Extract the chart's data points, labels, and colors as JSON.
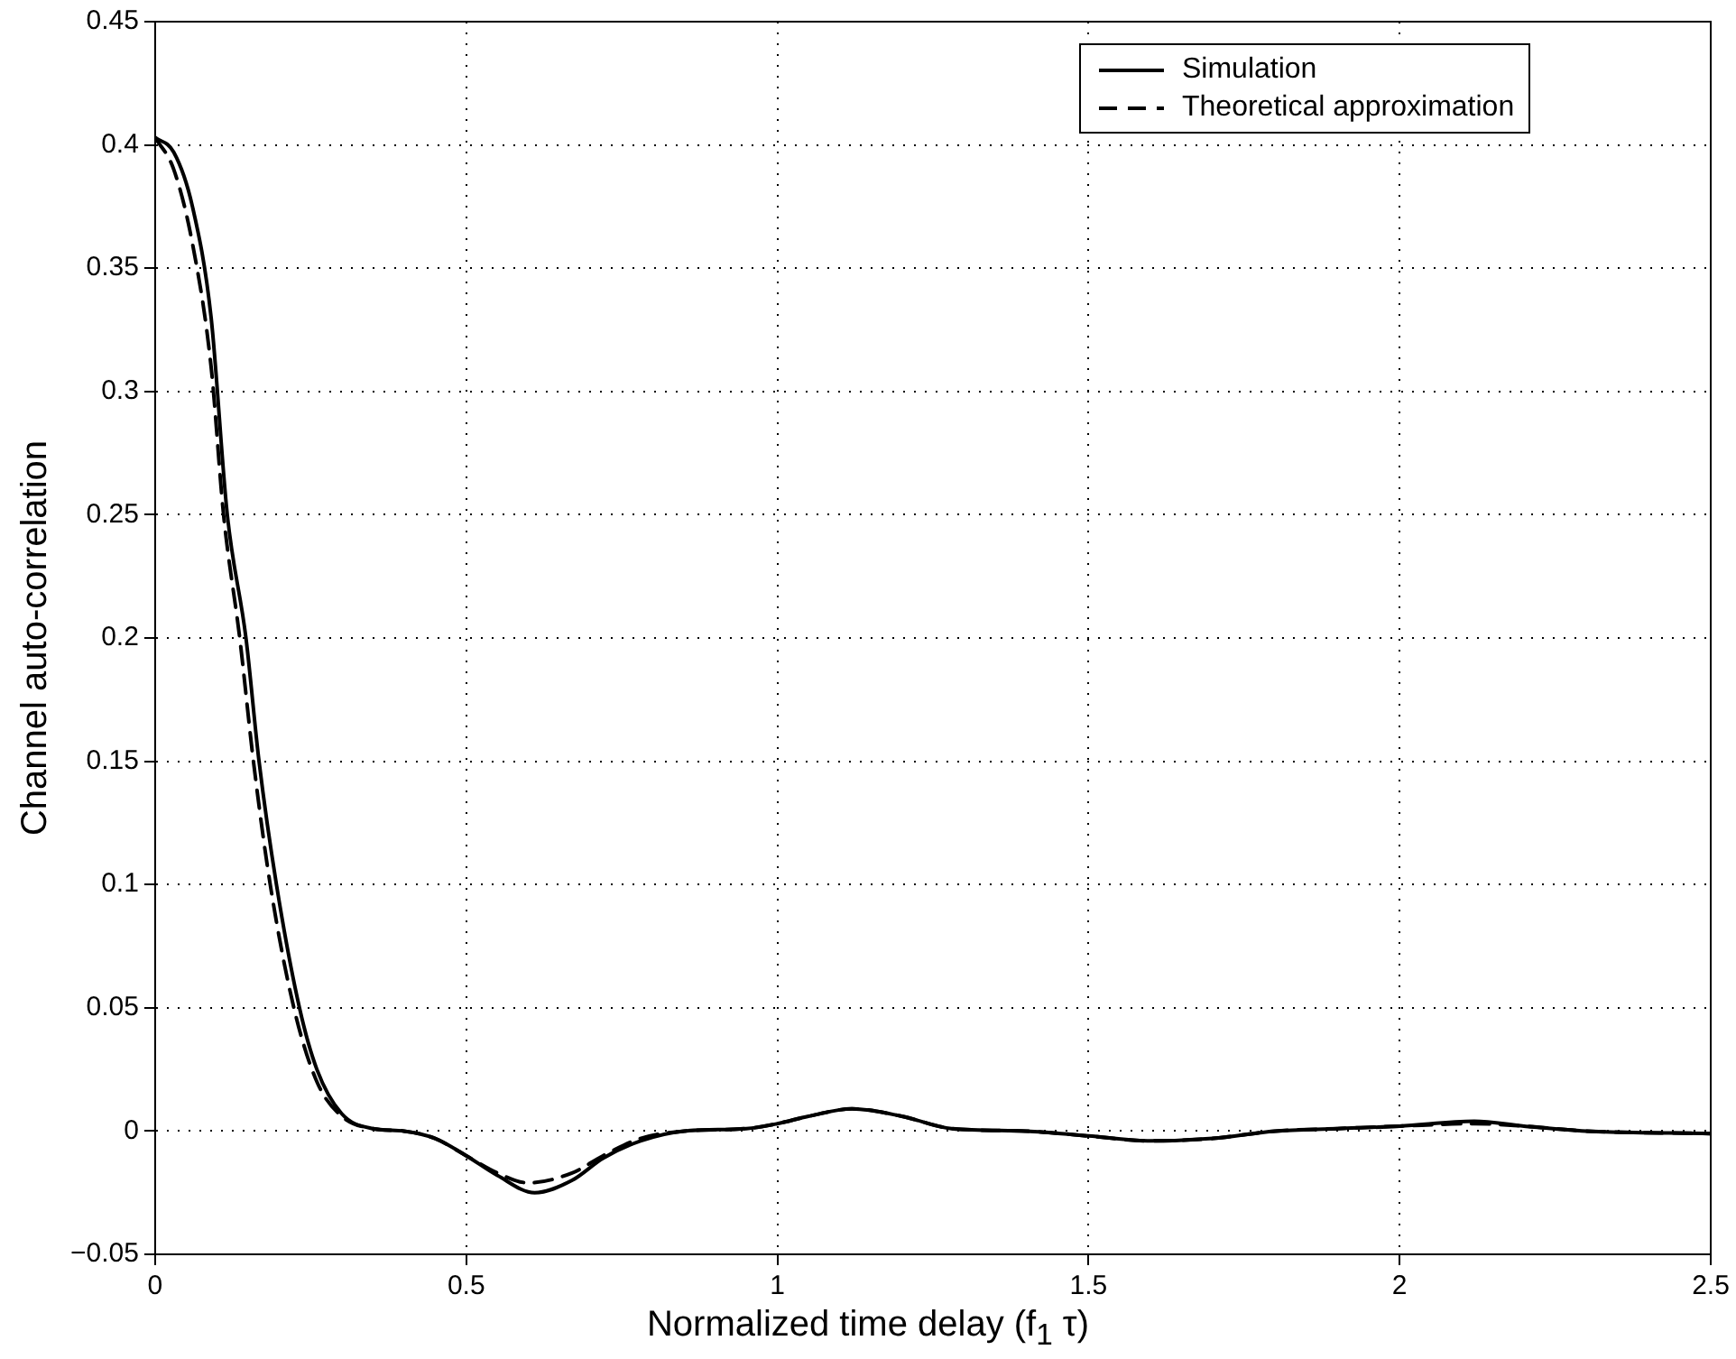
{
  "chart_data": {
    "type": "line",
    "xlabel": "Normalized time delay (f$_{1}$ τ)",
    "ylabel": "Channel auto-correlation",
    "xlim": [
      0,
      2.5
    ],
    "xticks": [
      0,
      0.5,
      1,
      1.5,
      2,
      2.5
    ],
    "ylim": [
      -0.05,
      0.45
    ],
    "yticks": [
      {
        "value": -0.05,
        "label": "−0.05"
      },
      0,
      0.05,
      0.1,
      0.15,
      0.2,
      0.25,
      0.3,
      0.35,
      0.4,
      0.45
    ],
    "grid": true,
    "legend": "top right",
    "marker": "none",
    "series": [
      {
        "name": "Simulation",
        "color": "#000000",
        "line_style": "solid",
        "x": [
          0,
          0.03,
          0.06,
          0.09,
          0.116,
          0.146,
          0.167,
          0.195,
          0.232,
          0.26,
          0.3,
          0.35,
          0.4,
          0.45,
          0.5,
          0.55,
          0.61,
          0.67,
          0.72,
          0.78,
          0.85,
          0.95,
          1.0,
          1.05,
          1.12,
          1.2,
          1.28,
          1.4,
          1.5,
          1.6,
          1.7,
          1.8,
          1.9,
          2.0,
          2.12,
          2.2,
          2.3,
          2.5
        ],
        "values": [
          0.403,
          0.397,
          0.375,
          0.33,
          0.25,
          0.2,
          0.15,
          0.1,
          0.05,
          0.025,
          0.007,
          0.001,
          0,
          -0.003,
          -0.01,
          -0.018,
          -0.025,
          -0.02,
          -0.011,
          -0.004,
          0,
          0.001,
          0.003,
          0.006,
          0.009,
          0.006,
          0.001,
          0,
          -0.002,
          -0.004,
          -0.003,
          0,
          0.001,
          0.002,
          0.004,
          0.002,
          0,
          -0.001
        ]
      },
      {
        "name": "Theoretical approximation",
        "color": "#000000",
        "line_style": "dashed",
        "x": [
          0,
          0.03,
          0.06,
          0.09,
          0.11,
          0.136,
          0.158,
          0.185,
          0.223,
          0.26,
          0.3,
          0.35,
          0.4,
          0.45,
          0.5,
          0.55,
          0.6,
          0.67,
          0.72,
          0.78,
          0.85,
          0.95,
          1.0,
          1.05,
          1.12,
          1.2,
          1.28,
          1.4,
          1.5,
          1.6,
          1.7,
          1.8,
          1.9,
          2.0,
          2.12,
          2.2,
          2.3,
          2.5
        ],
        "values": [
          0.403,
          0.39,
          0.36,
          0.31,
          0.25,
          0.2,
          0.15,
          0.1,
          0.05,
          0.02,
          0.006,
          0.001,
          0,
          -0.003,
          -0.01,
          -0.017,
          -0.021,
          -0.017,
          -0.01,
          -0.003,
          0,
          0.001,
          0.003,
          0.006,
          0.009,
          0.006,
          0.001,
          0,
          -0.002,
          -0.004,
          -0.003,
          0,
          0.001,
          0.002,
          0.003,
          0.002,
          0,
          -0.001
        ]
      }
    ]
  }
}
